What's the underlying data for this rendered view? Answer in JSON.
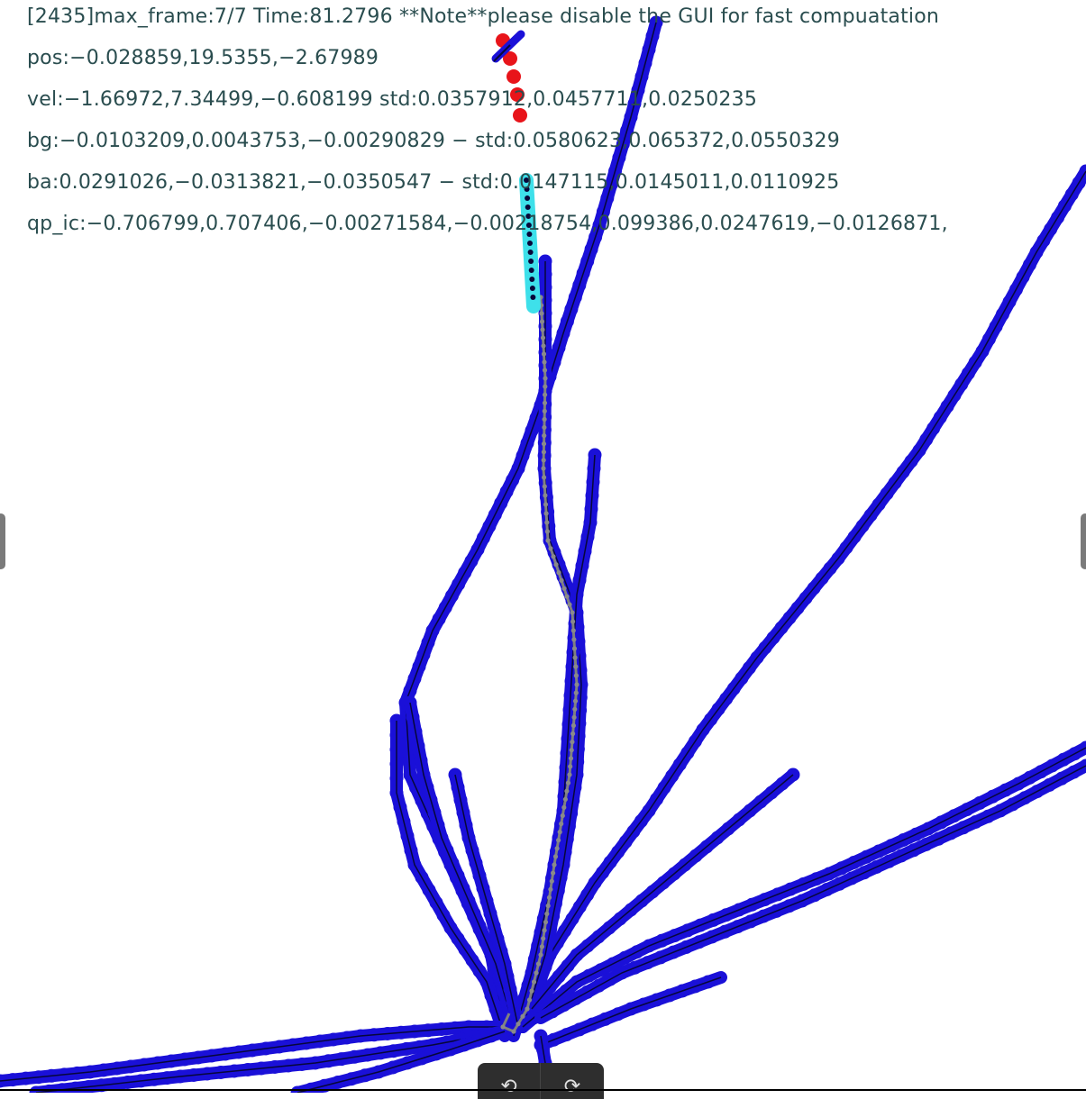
{
  "overlay": {
    "status_line": "[2435]max_frame:7/7 Time:81.2796 **Note**please disable the GUI for fast compuatation",
    "pos_line": "pos:−0.028859,19.5355,−2.67989",
    "vel_line": "vel:−1.66972,7.34499,−0.608199 std:0.0357912,0.0457711,0.0250235",
    "bg_line": "bg:−0.0103209,0.0043753,−0.00290829 − std:0.0580623,0.065372,0.0550329",
    "ba_line": "ba:0.0291026,−0.0313821,−0.0350547 − std:0.0147115,0.0145011,0.0110925",
    "qp_line": "qp_ic:−0.706799,0.707406,−0.00271584,−0.00218754,0.099386,0.0247619,−0.0126871,"
  },
  "colors": {
    "trajectory": "#1a10d8",
    "trajectory_line": "#07073a",
    "current_track": "#e8141a",
    "window": "#3ee0ea",
    "gt": "#808080",
    "text": "#2a4d4f"
  },
  "toolbar": {
    "rotate_left_icon": "⟲",
    "rotate_right_icon": "⟳"
  }
}
